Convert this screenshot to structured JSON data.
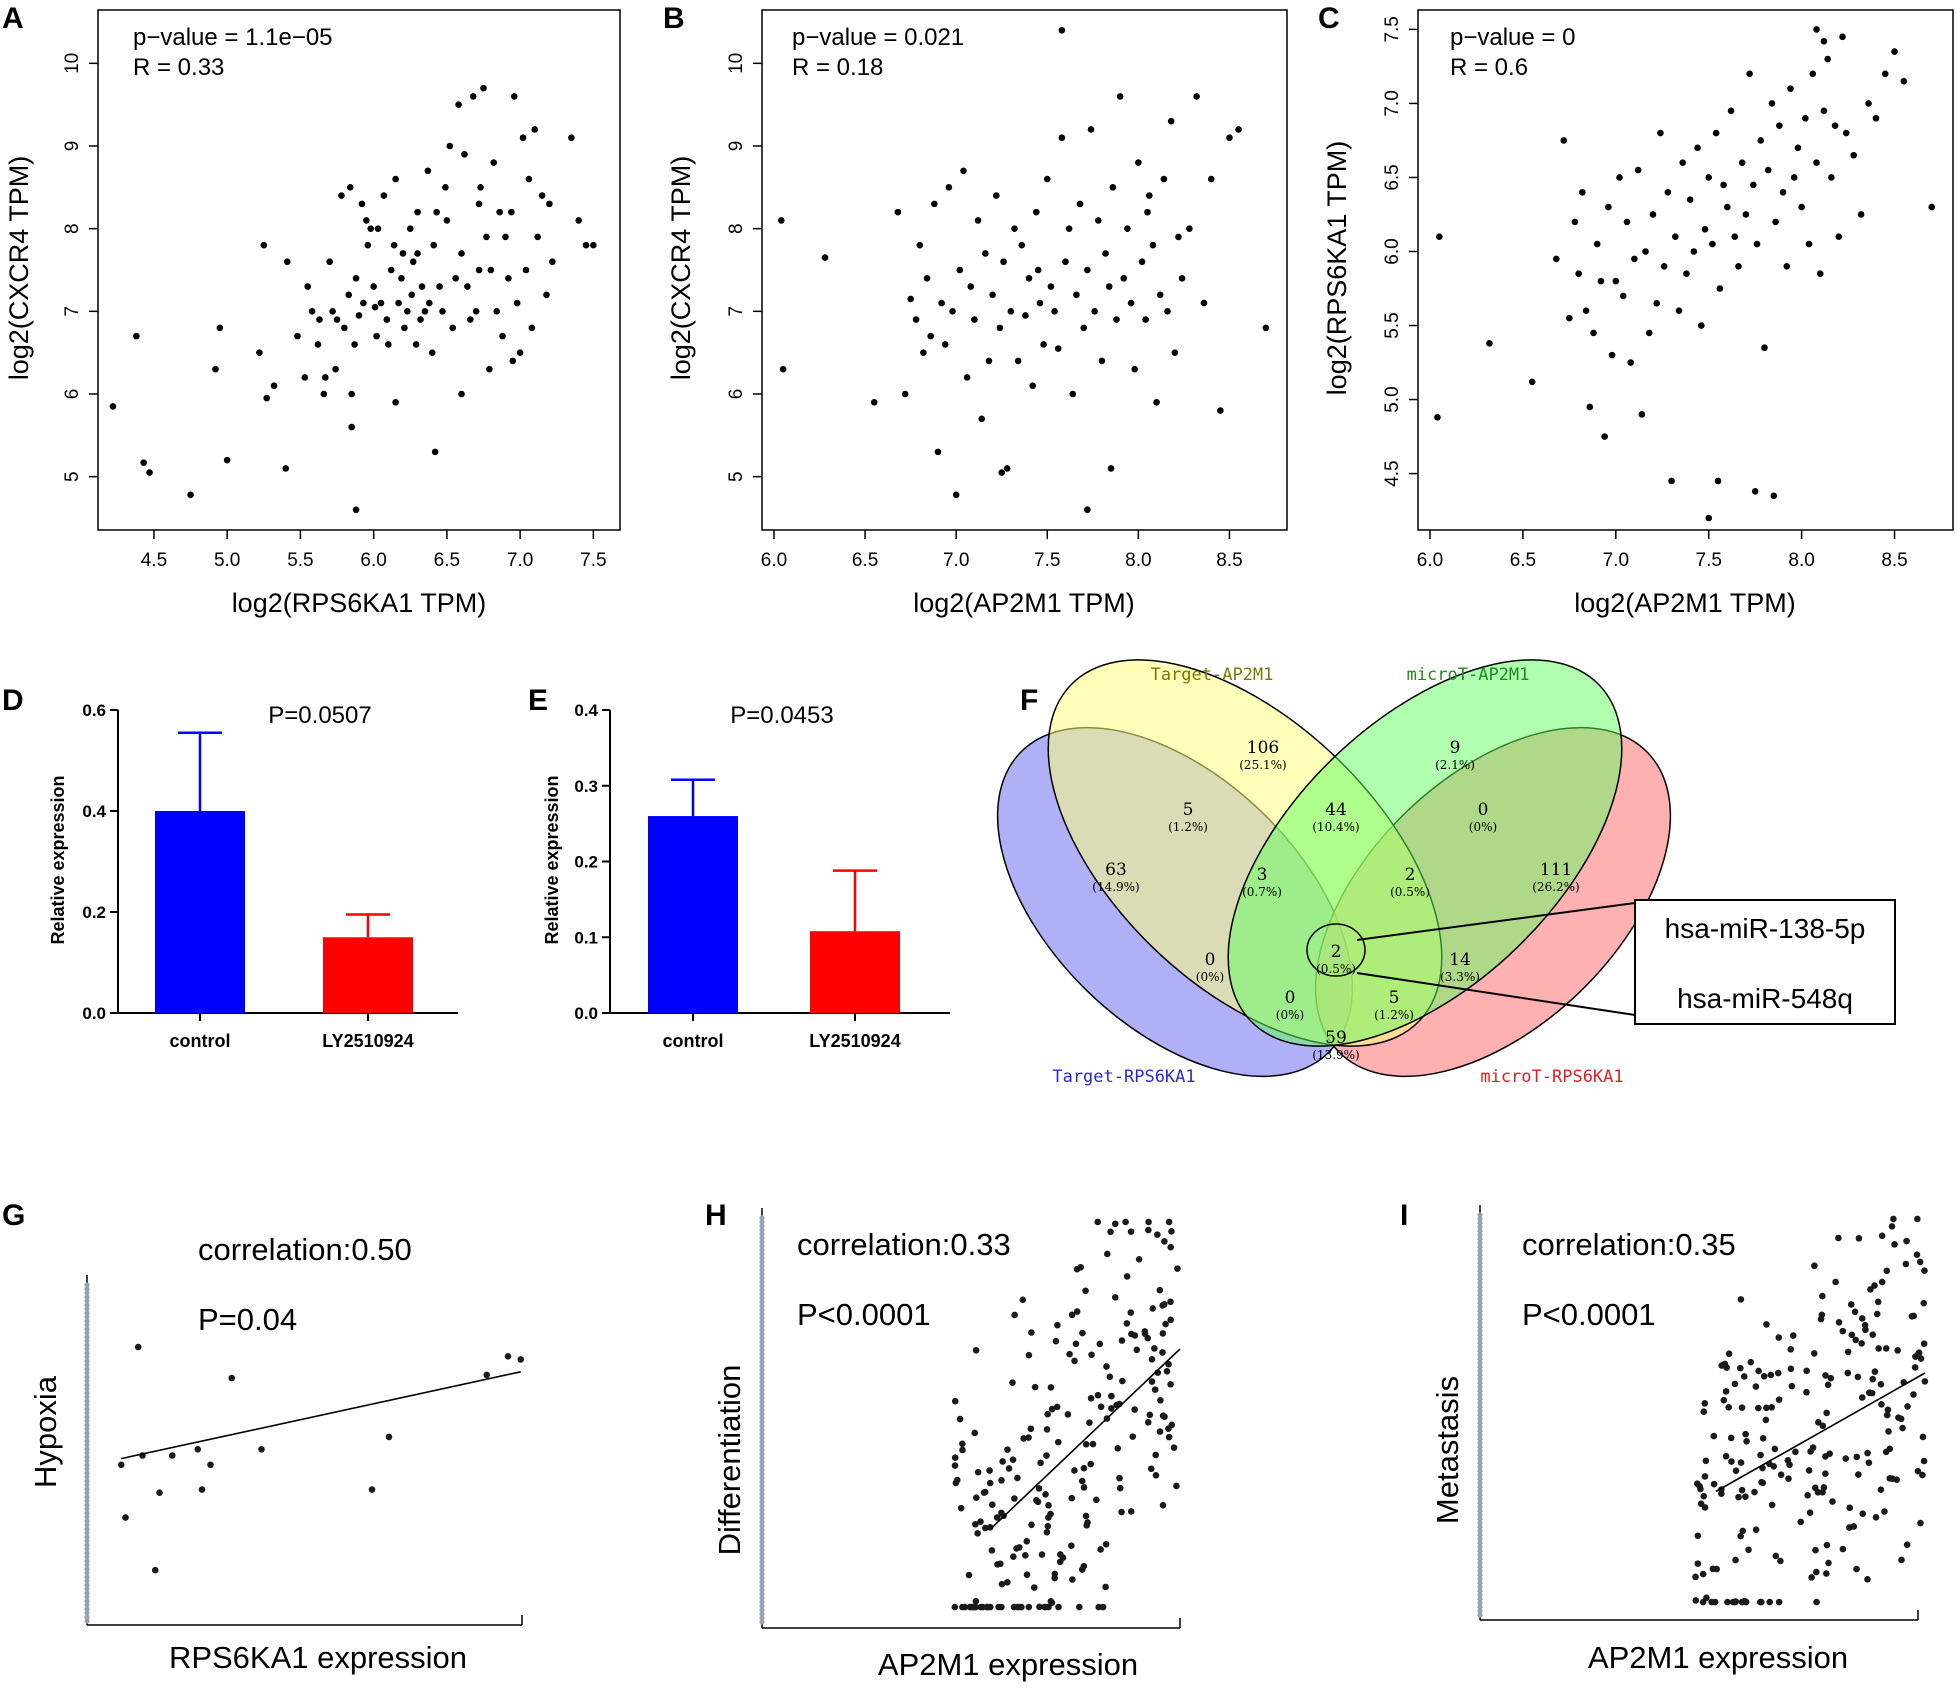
{
  "panels": {
    "A": {
      "label": "A",
      "stat1": "p−value = 1.1e−05",
      "stat2": "R = 0.33",
      "xlabel": "log2(RPS6KA1 TPM)",
      "ylabel": "log2(CXCR4 TPM)"
    },
    "B": {
      "label": "B",
      "stat1": "p−value = 0.021",
      "stat2": "R = 0.18",
      "xlabel": "log2(AP2M1 TPM)",
      "ylabel": "log2(CXCR4 TPM)"
    },
    "C": {
      "label": "C",
      "stat1": "p−value = 0",
      "stat2": "R = 0.6",
      "xlabel": "log2(AP2M1 TPM)",
      "ylabel": "log2(RPS6KA1 TPM)"
    },
    "D": {
      "label": "D",
      "ptext": "P=0.0507",
      "ylabel": "Relative expression"
    },
    "E": {
      "label": "E",
      "ptext": "P=0.0453",
      "ylabel": "Relative expression"
    },
    "F": {
      "label": "F"
    },
    "G": {
      "label": "G",
      "corr": "correlation:0.50",
      "p": "P=0.04",
      "xlabel": "RPS6KA1 expression",
      "ylabel": "Hypoxia"
    },
    "H": {
      "label": "H",
      "corr": "correlation:0.33",
      "p": "P<0.0001",
      "xlabel": "AP2M1 expression",
      "ylabel": "Differentiation"
    },
    "I": {
      "label": "I",
      "corr": "correlation:0.35",
      "p": "P<0.0001",
      "xlabel": "AP2M1 expression",
      "ylabel": "Metastasis"
    }
  },
  "venn": {
    "sets": [
      "Target-AP2M1",
      "microT-AP2M1",
      "Target-RPS6KA1",
      "microT-RPS6KA1"
    ],
    "set_colors": [
      "#7a7a00",
      "#1f8a1f",
      "#2a2ad0",
      "#e02020"
    ],
    "regions": [
      {
        "n": "106",
        "pct": "(25.1%)"
      },
      {
        "n": "9",
        "pct": "(2.1%)"
      },
      {
        "n": "5",
        "pct": "(1.2%)"
      },
      {
        "n": "44",
        "pct": "(10.4%)"
      },
      {
        "n": "0",
        "pct": "(0%)"
      },
      {
        "n": "63",
        "pct": "(14.9%)"
      },
      {
        "n": "3",
        "pct": "(0.7%)"
      },
      {
        "n": "2",
        "pct": "(0.5%)"
      },
      {
        "n": "111",
        "pct": "(26.2%)"
      },
      {
        "n": "2",
        "pct": "(0.5%)"
      },
      {
        "n": "0",
        "pct": "(0%)"
      },
      {
        "n": "14",
        "pct": "(3.3%)"
      },
      {
        "n": "0",
        "pct": "(0%)"
      },
      {
        "n": "5",
        "pct": "(1.2%)"
      },
      {
        "n": "59",
        "pct": "(13.9%)"
      }
    ],
    "mirnas": [
      "hsa-miR-138-5p",
      "hsa-miR-548q"
    ]
  },
  "chart_data": [
    {
      "type": "scatter",
      "panel": "A",
      "title": "",
      "xlabel": "log2(RPS6KA1 TPM)",
      "ylabel": "log2(CXCR4 TPM)",
      "xlim": [
        4.2,
        7.6
      ],
      "ylim": [
        4.5,
        10.5
      ],
      "xticks": [
        "4.5",
        "5.0",
        "5.5",
        "6.0",
        "6.5",
        "7.0",
        "7.5"
      ],
      "yticks": [
        "5",
        "6",
        "7",
        "8",
        "9",
        "10"
      ],
      "annotations": [
        "p−value = 1.1e−05",
        "R = 0.33"
      ],
      "x": [
        4.22,
        4.38,
        4.43,
        4.47,
        4.75,
        4.92,
        4.95,
        5.0,
        5.22,
        5.25,
        5.27,
        5.32,
        5.4,
        5.41,
        5.48,
        5.53,
        5.55,
        5.58,
        5.62,
        5.63,
        5.66,
        5.67,
        5.7,
        5.72,
        5.74,
        5.75,
        5.78,
        5.8,
        5.83,
        5.84,
        5.85,
        5.87,
        5.88,
        5.9,
        5.92,
        5.93,
        5.95,
        5.96,
        5.98,
        6.0,
        6.01,
        6.02,
        6.03,
        6.05,
        6.07,
        6.09,
        6.1,
        6.12,
        6.14,
        6.15,
        6.17,
        6.19,
        6.2,
        6.21,
        6.23,
        6.25,
        6.26,
        6.27,
        6.29,
        6.3,
        6.32,
        6.33,
        6.35,
        6.37,
        6.38,
        6.4,
        6.41,
        6.43,
        6.45,
        6.47,
        6.49,
        6.5,
        6.52,
        6.54,
        6.56,
        6.58,
        6.6,
        6.62,
        6.64,
        6.66,
        6.68,
        6.7,
        6.72,
        6.73,
        6.75,
        6.77,
        6.79,
        6.8,
        6.82,
        6.84,
        6.86,
        6.88,
        6.9,
        6.92,
        6.94,
        6.96,
        6.98,
        7.0,
        7.02,
        7.04,
        7.06,
        7.08,
        7.1,
        7.12,
        7.15,
        7.18,
        7.2,
        7.22,
        7.35,
        7.4,
        7.45,
        7.5,
        5.85,
        6.3,
        6.42,
        6.6,
        5.88,
        6.15,
        6.72,
        6.95
      ],
      "y": [
        5.85,
        6.7,
        5.17,
        5.05,
        4.78,
        6.3,
        6.8,
        5.2,
        6.5,
        7.8,
        5.95,
        6.1,
        5.1,
        7.6,
        6.7,
        6.2,
        7.3,
        7.0,
        6.6,
        6.9,
        6.0,
        6.2,
        7.6,
        7.0,
        6.3,
        6.9,
        8.4,
        6.8,
        7.2,
        8.5,
        6.0,
        6.6,
        7.4,
        6.95,
        8.3,
        7.1,
        8.1,
        7.8,
        8.0,
        7.3,
        7.05,
        6.7,
        8.0,
        7.1,
        8.4,
        6.9,
        6.6,
        7.5,
        7.8,
        8.6,
        7.1,
        7.4,
        7.7,
        6.8,
        7.0,
        8.0,
        7.2,
        7.6,
        6.6,
        8.2,
        6.9,
        7.3,
        7.0,
        8.7,
        7.1,
        6.5,
        7.8,
        8.2,
        7.3,
        7.0,
        8.5,
        8.1,
        9.0,
        6.8,
        7.4,
        9.5,
        7.7,
        8.9,
        7.3,
        6.9,
        9.6,
        7.0,
        7.5,
        8.5,
        9.7,
        7.9,
        6.3,
        7.5,
        8.8,
        7.0,
        8.2,
        6.7,
        7.9,
        7.4,
        8.2,
        9.6,
        7.1,
        6.5,
        9.1,
        7.5,
        8.6,
        6.8,
        9.2,
        7.9,
        8.4,
        7.2,
        8.3,
        7.6,
        9.1,
        8.1,
        7.8,
        7.8,
        5.6,
        7.7,
        5.3,
        6.0,
        4.6,
        5.9,
        8.3,
        6.4
      ]
    },
    {
      "type": "scatter",
      "panel": "B",
      "title": "",
      "xlabel": "log2(AP2M1 TPM)",
      "ylabel": "log2(CXCR4 TPM)",
      "xlim": [
        6.0,
        8.75
      ],
      "ylim": [
        4.5,
        10.5
      ],
      "xticks": [
        "6.0",
        "6.5",
        "7.0",
        "7.5",
        "8.0",
        "8.5"
      ],
      "yticks": [
        "5",
        "6",
        "7",
        "8",
        "9",
        "10"
      ],
      "annotations": [
        "p−value = 0.021",
        "R = 0.18"
      ],
      "x": [
        6.04,
        6.05,
        6.28,
        6.55,
        6.68,
        6.72,
        6.75,
        6.78,
        6.8,
        6.82,
        6.84,
        6.86,
        6.88,
        6.9,
        6.92,
        6.94,
        6.96,
        6.98,
        7.0,
        7.02,
        7.04,
        7.06,
        7.08,
        7.1,
        7.12,
        7.14,
        7.16,
        7.18,
        7.2,
        7.22,
        7.24,
        7.26,
        7.28,
        7.3,
        7.32,
        7.34,
        7.36,
        7.38,
        7.4,
        7.42,
        7.44,
        7.46,
        7.48,
        7.5,
        7.52,
        7.54,
        7.56,
        7.58,
        7.6,
        7.62,
        7.64,
        7.66,
        7.68,
        7.7,
        7.72,
        7.74,
        7.76,
        7.78,
        7.8,
        7.82,
        7.84,
        7.86,
        7.88,
        7.9,
        7.92,
        7.94,
        7.96,
        7.98,
        8.0,
        8.02,
        8.04,
        8.06,
        8.08,
        8.1,
        8.12,
        8.14,
        8.16,
        8.18,
        8.2,
        8.22,
        8.24,
        8.28,
        8.32,
        8.36,
        8.4,
        8.45,
        8.5,
        8.55,
        8.7,
        7.58,
        7.72,
        7.85,
        8.05,
        7.45,
        7.25
      ],
      "y": [
        8.1,
        6.3,
        7.65,
        5.9,
        8.2,
        6.0,
        7.15,
        6.9,
        7.8,
        6.5,
        7.4,
        6.7,
        8.3,
        5.3,
        7.1,
        6.6,
        8.5,
        7.0,
        4.78,
        7.5,
        8.7,
        6.2,
        7.3,
        6.9,
        8.1,
        5.7,
        7.7,
        6.4,
        7.2,
        8.4,
        6.8,
        7.6,
        5.1,
        7.0,
        8.0,
        6.4,
        7.8,
        6.95,
        7.4,
        6.1,
        8.2,
        7.1,
        6.6,
        8.6,
        7.3,
        7.0,
        6.55,
        9.1,
        7.6,
        8.0,
        6.0,
        7.2,
        8.3,
        6.8,
        7.5,
        9.2,
        7.0,
        8.1,
        6.4,
        7.7,
        7.3,
        8.5,
        6.9,
        9.6,
        7.4,
        8.0,
        7.1,
        6.3,
        8.8,
        7.6,
        6.9,
        8.4,
        7.8,
        5.9,
        7.2,
        8.6,
        7.0,
        9.3,
        6.5,
        7.9,
        7.4,
        8.0,
        9.6,
        7.1,
        8.6,
        5.8,
        9.1,
        9.2,
        6.8,
        10.4,
        4.6,
        5.1,
        8.2,
        7.5,
        5.05
      ]
    },
    {
      "type": "scatter",
      "panel": "C",
      "title": "",
      "xlabel": "log2(AP2M1 TPM)",
      "ylabel": "log2(RPS6KA1 TPM)",
      "xlim": [
        6.0,
        8.75
      ],
      "ylim": [
        4.2,
        7.55
      ],
      "xticks": [
        "6.0",
        "6.5",
        "7.0",
        "7.5",
        "8.0",
        "8.5"
      ],
      "yticks": [
        "4.5",
        "5.0",
        "5.5",
        "6.0",
        "6.5",
        "7.0",
        "7.5"
      ],
      "annotations": [
        "p−value = 0",
        "R = 0.6"
      ],
      "x": [
        6.04,
        6.05,
        6.32,
        6.55,
        6.68,
        6.72,
        6.75,
        6.78,
        6.8,
        6.82,
        6.84,
        6.86,
        6.88,
        6.9,
        6.92,
        6.94,
        6.96,
        6.98,
        7.0,
        7.02,
        7.04,
        7.06,
        7.08,
        7.1,
        7.12,
        7.14,
        7.16,
        7.18,
        7.2,
        7.22,
        7.24,
        7.26,
        7.28,
        7.3,
        7.32,
        7.34,
        7.36,
        7.38,
        7.4,
        7.42,
        7.44,
        7.46,
        7.48,
        7.5,
        7.52,
        7.54,
        7.56,
        7.58,
        7.6,
        7.62,
        7.64,
        7.66,
        7.68,
        7.7,
        7.72,
        7.74,
        7.76,
        7.78,
        7.8,
        7.82,
        7.84,
        7.86,
        7.88,
        7.9,
        7.92,
        7.94,
        7.96,
        7.98,
        8.0,
        8.02,
        8.04,
        8.06,
        8.08,
        8.1,
        8.12,
        8.14,
        8.16,
        8.18,
        8.2,
        8.22,
        8.24,
        8.28,
        8.32,
        8.36,
        8.4,
        8.45,
        8.5,
        8.55,
        8.7,
        7.5,
        7.55,
        7.75,
        7.85,
        8.08,
        8.12
      ],
      "y": [
        4.88,
        6.1,
        5.38,
        5.12,
        5.95,
        6.75,
        5.55,
        6.2,
        5.85,
        6.4,
        5.6,
        4.95,
        5.45,
        6.05,
        5.8,
        4.75,
        6.3,
        5.3,
        5.8,
        6.5,
        5.7,
        6.2,
        5.25,
        5.95,
        6.55,
        4.9,
        6.0,
        5.45,
        6.25,
        5.65,
        6.8,
        5.9,
        6.4,
        4.45,
        6.1,
        5.6,
        6.6,
        5.85,
        6.35,
        6.0,
        6.7,
        5.5,
        6.15,
        6.5,
        6.05,
        6.8,
        5.75,
        6.45,
        6.3,
        6.95,
        6.1,
        5.9,
        6.6,
        6.25,
        7.2,
        6.45,
        6.05,
        6.75,
        5.35,
        6.55,
        7.0,
        6.2,
        6.85,
        6.4,
        5.9,
        7.1,
        6.5,
        6.7,
        6.3,
        6.9,
        6.05,
        7.2,
        6.6,
        5.85,
        6.95,
        7.3,
        6.5,
        6.85,
        6.1,
        7.45,
        6.8,
        6.65,
        6.25,
        7.0,
        6.9,
        7.2,
        7.35,
        7.15,
        6.3,
        4.2,
        4.45,
        4.38,
        4.35,
        7.5,
        7.42
      ]
    },
    {
      "type": "bar",
      "panel": "D",
      "categories": [
        "control",
        "LY2510924"
      ],
      "values": [
        0.4,
        0.15
      ],
      "errors": [
        0.155,
        0.045
      ],
      "colors": [
        "#0000ff",
        "#ff0000"
      ],
      "ylabel": "Relative expression",
      "ylim": [
        0,
        0.6
      ],
      "yticks": [
        "0.0",
        "0.2",
        "0.4",
        "0.6"
      ],
      "annotations": [
        "P=0.0507"
      ]
    },
    {
      "type": "bar",
      "panel": "E",
      "categories": [
        "control",
        "LY2510924"
      ],
      "values": [
        0.26,
        0.108
      ],
      "errors": [
        0.048,
        0.08
      ],
      "colors": [
        "#0000ff",
        "#ff0000"
      ],
      "ylabel": "Relative expression",
      "ylim": [
        0,
        0.4
      ],
      "yticks": [
        "0.0",
        "0.1",
        "0.2",
        "0.3",
        "0.4"
      ],
      "annotations": [
        "P=0.0453"
      ]
    },
    {
      "type": "scatter",
      "panel": "G",
      "xlabel": "RPS6KA1 expression",
      "ylabel": "Hypoxia",
      "xlim": [
        0,
        1
      ],
      "ylim": [
        0,
        1
      ],
      "annotations": [
        "correlation:0.50",
        "P=0.04"
      ],
      "x": [
        0.05,
        0.06,
        0.09,
        0.1,
        0.13,
        0.14,
        0.17,
        0.23,
        0.24,
        0.26,
        0.31,
        0.38,
        0.64,
        0.68,
        0.91,
        0.96,
        0.99
      ],
      "y": [
        0.42,
        0.25,
        0.8,
        0.45,
        0.08,
        0.33,
        0.45,
        0.47,
        0.34,
        0.42,
        0.7,
        0.47,
        0.34,
        0.51,
        0.71,
        0.77,
        0.76
      ],
      "fit": {
        "x": [
          0.05,
          0.99
        ],
        "y": [
          0.44,
          0.72
        ]
      }
    },
    {
      "type": "scatter",
      "panel": "H",
      "xlabel": "AP2M1 expression",
      "ylabel": "Differentiation",
      "xlim": [
        0,
        1
      ],
      "ylim": [
        0,
        1
      ],
      "annotations": [
        "correlation:0.33",
        "P<0.0001"
      ],
      "n_points": 220,
      "fit": {
        "x": [
          0.55,
          1.0
        ],
        "y": [
          0.22,
          0.67
        ]
      }
    },
    {
      "type": "scatter",
      "panel": "I",
      "xlabel": "AP2M1 expression",
      "ylabel": "Metastasis",
      "xlim": [
        0,
        1
      ],
      "ylim": [
        0,
        1
      ],
      "annotations": [
        "correlation:0.35",
        "P<0.0001"
      ],
      "n_points": 220,
      "fit": {
        "x": [
          0.53,
          1.0
        ],
        "y": [
          0.3,
          0.6
        ]
      }
    }
  ]
}
